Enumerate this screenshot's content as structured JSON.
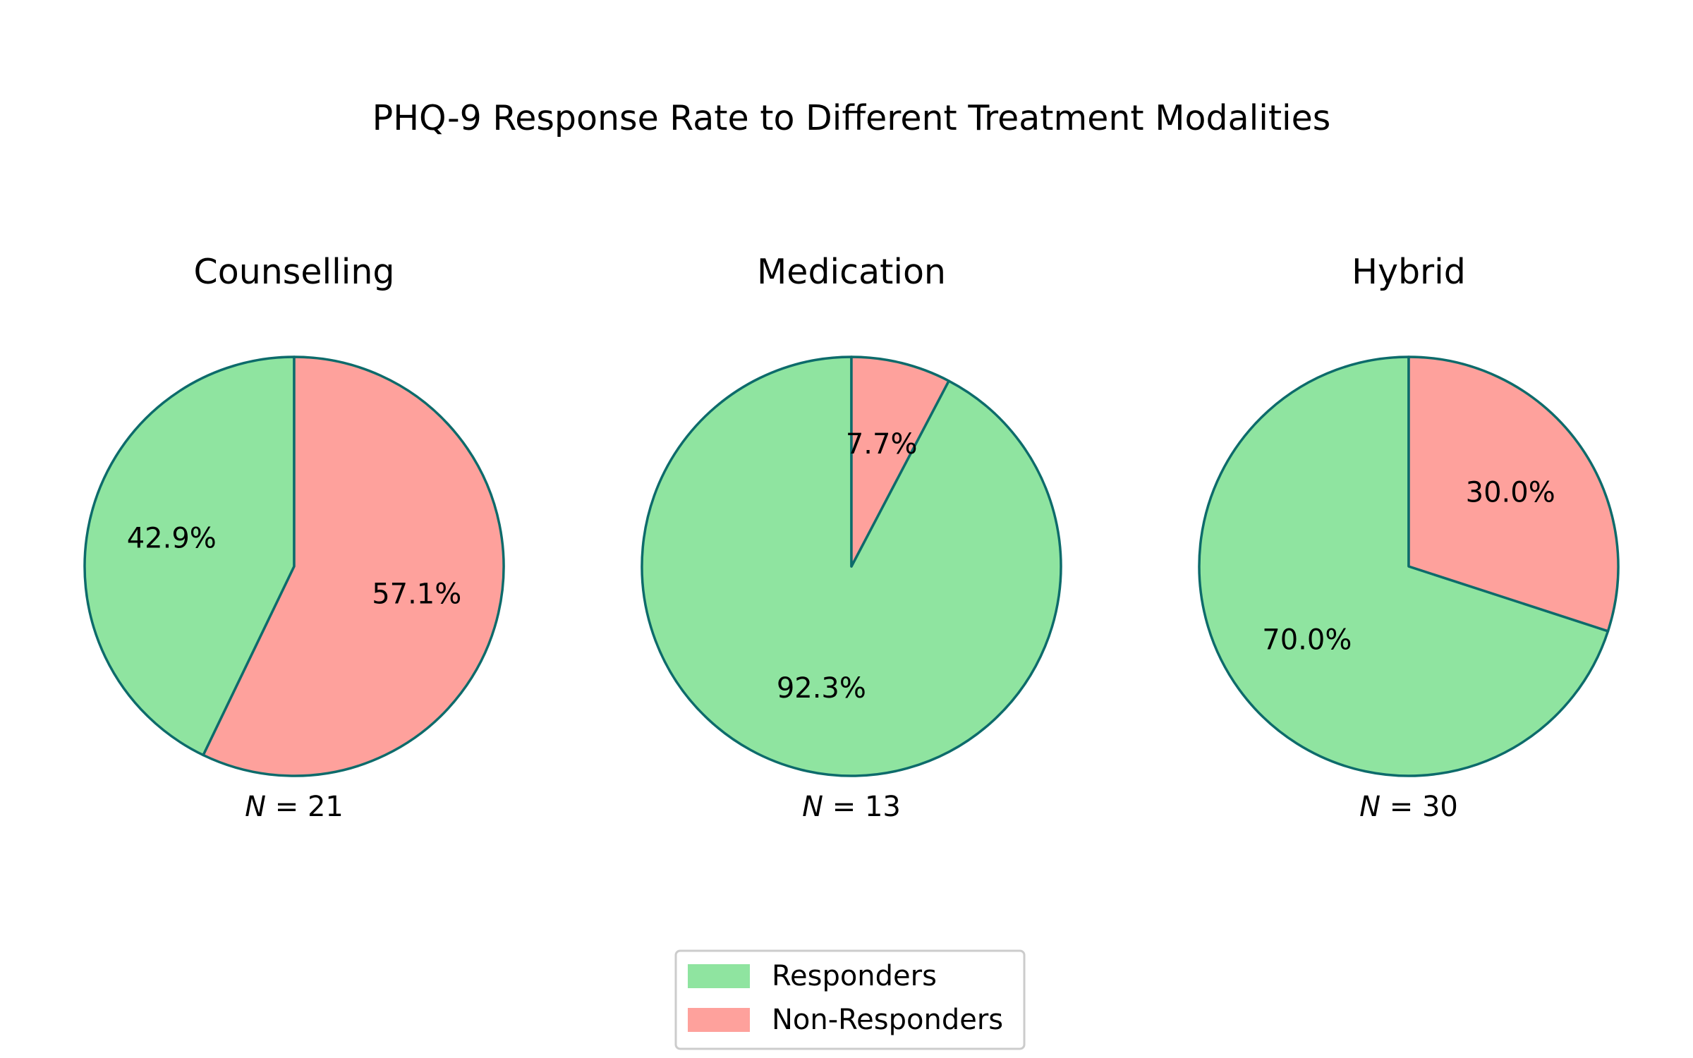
{
  "chart_data": {
    "type": "pie",
    "title": "PHQ-9 Response Rate to Different Treatment Modalities",
    "legend": {
      "placement": "bottom-center",
      "entries": [
        {
          "label": "Responders",
          "color": "#8fe4a0"
        },
        {
          "label": "Non-Responders",
          "color": "#fea19c"
        }
      ]
    },
    "edge_color": "#0d6b6b",
    "pies": [
      {
        "title": "Counselling",
        "n_label_prefix": "N",
        "n": 21,
        "n_text": "21",
        "slices": [
          {
            "label": "Responders",
            "value": 9,
            "percent": 42.9,
            "percent_text": "42.9%",
            "color": "#8fe4a0"
          },
          {
            "label": "Non-Responders",
            "value": 12,
            "percent": 57.1,
            "percent_text": "57.1%",
            "color": "#fea19c"
          }
        ]
      },
      {
        "title": "Medication",
        "n_label_prefix": "N",
        "n": 13,
        "n_text": "13",
        "slices": [
          {
            "label": "Responders",
            "value": 12,
            "percent": 92.3,
            "percent_text": "92.3%",
            "color": "#8fe4a0"
          },
          {
            "label": "Non-Responders",
            "value": 1,
            "percent": 7.7,
            "percent_text": "7.7%",
            "color": "#fea19c"
          }
        ]
      },
      {
        "title": "Hybrid",
        "n_label_prefix": "N",
        "n": 30,
        "n_text": "30",
        "slices": [
          {
            "label": "Responders",
            "value": 21,
            "percent": 70.0,
            "percent_text": "70.0%",
            "color": "#8fe4a0"
          },
          {
            "label": "Non-Responders",
            "value": 9,
            "percent": 30.0,
            "percent_text": "30.0%",
            "color": "#fea19c"
          }
        ]
      }
    ]
  }
}
